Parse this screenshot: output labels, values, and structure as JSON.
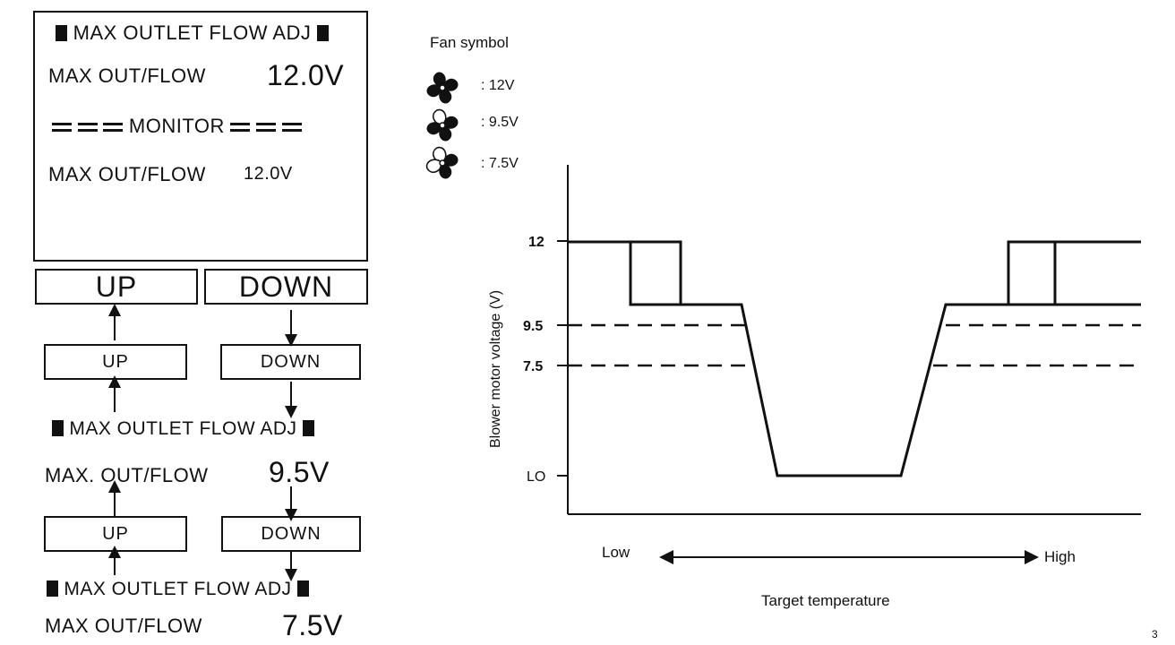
{
  "display": {
    "title": "MAX OUTLET FLOW ADJ",
    "row1_label": "MAX OUT/FLOW",
    "row1_value": "12.0V",
    "monitor_label": "MONITOR",
    "row2_label": "MAX OUT/FLOW",
    "row2_value": "12.0V"
  },
  "keys": {
    "up": "UP",
    "down": "DOWN"
  },
  "step1": {
    "up": "UP",
    "down": "DOWN",
    "title": "MAX OUTLET FLOW ADJ",
    "label": "MAX. OUT/FLOW",
    "value": "9.5V"
  },
  "step2": {
    "up": "UP",
    "down": "DOWN",
    "title": "MAX OUTLET FLOW ADJ",
    "label": "MAX OUT/FLOW",
    "value": "7.5V"
  },
  "fan_legend": {
    "title": "Fan symbol",
    "items": [
      {
        "icon": "fan-full-icon",
        "label": ": 12V"
      },
      {
        "icon": "fan-half-icon",
        "label": ": 9.5V"
      },
      {
        "icon": "fan-low-icon",
        "label": ": 7.5V"
      }
    ]
  },
  "chart": {
    "ylabel": "Blower motor voltage (V)",
    "xlabel": "Target temperature",
    "y_ticks": [
      "12",
      "9.5",
      "7.5",
      "LO"
    ],
    "x_left": "Low",
    "x_right": "High"
  },
  "page_mark": "3"
}
